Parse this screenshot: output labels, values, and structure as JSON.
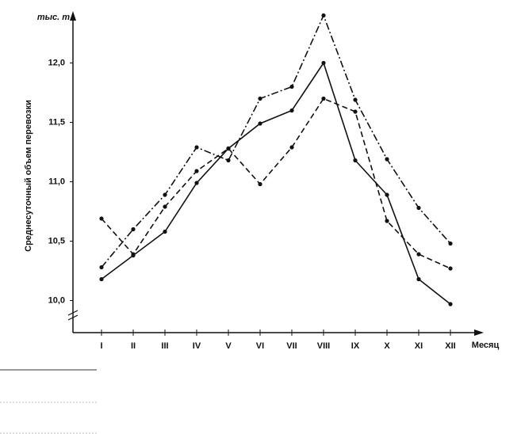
{
  "chart_data": {
    "type": "line",
    "y_unit": "тыс. т",
    "ylabel": "Среднесуточный объем перевозки",
    "xlabel": "Месяц",
    "categories": [
      "I",
      "II",
      "III",
      "IV",
      "V",
      "VI",
      "VII",
      "VIII",
      "IX",
      "X",
      "XI",
      "XII"
    ],
    "series": [
      {
        "color": "#111111",
        "dash": "solid",
        "values": [
          10.18,
          10.38,
          10.58,
          10.99,
          11.28,
          11.49,
          11.6,
          12.0,
          11.18,
          10.89,
          10.18,
          9.97
        ]
      },
      {
        "color": "#111111",
        "dash": "dashdot",
        "values": [
          10.28,
          10.6,
          10.89,
          11.29,
          11.18,
          11.7,
          11.8,
          12.4,
          11.69,
          11.19,
          10.78,
          10.48
        ]
      },
      {
        "color": "#111111",
        "dash": "dashed",
        "values": [
          10.69,
          10.39,
          10.79,
          11.09,
          11.28,
          10.98,
          11.29,
          11.7,
          11.59,
          10.67,
          10.39,
          10.27
        ]
      }
    ],
    "ylim": [
      9.73,
      12.45
    ],
    "yticks": [
      {
        "value": 10,
        "label": "10,0"
      },
      {
        "value": 10.5,
        "label": "10,5"
      },
      {
        "value": 11,
        "label": "11,0"
      },
      {
        "value": 11.5,
        "label": "11,5"
      },
      {
        "value": 12,
        "label": "12,0"
      }
    ],
    "grid": false
  }
}
